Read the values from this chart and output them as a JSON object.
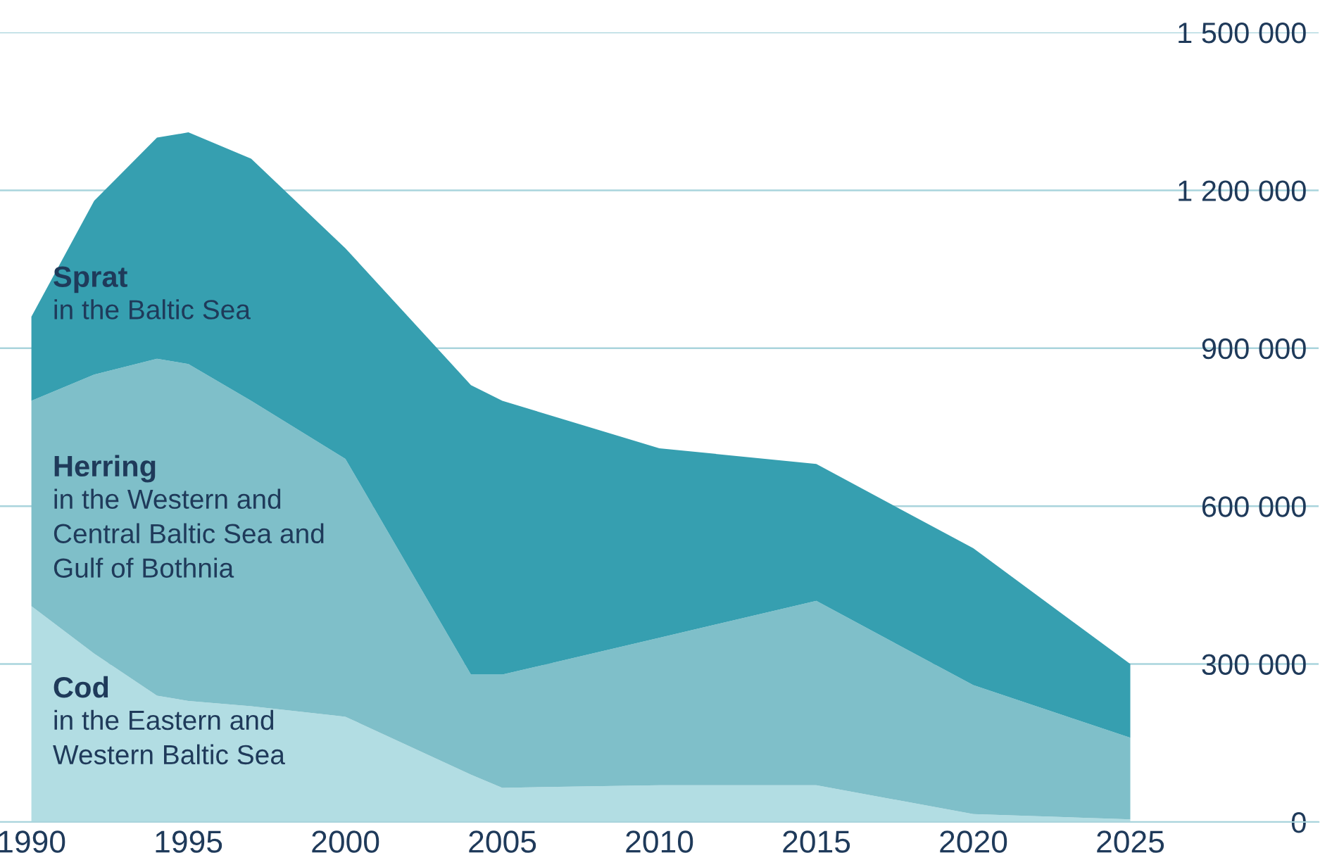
{
  "chart_data": {
    "type": "area",
    "stacked": true,
    "x": [
      1990,
      1992,
      1994,
      1995,
      1997,
      2000,
      2004,
      2005,
      2010,
      2015,
      2020,
      2025
    ],
    "series": [
      {
        "name": "Cod",
        "color": "#b2dde3",
        "values": [
          410000,
          320000,
          240000,
          230000,
          220000,
          200000,
          90000,
          65000,
          70000,
          70000,
          15000,
          5000
        ]
      },
      {
        "name": "Herring",
        "color": "#7fbfc9",
        "values": [
          390000,
          530000,
          640000,
          640000,
          580000,
          490000,
          190000,
          215000,
          280000,
          350000,
          245000,
          155000
        ]
      },
      {
        "name": "Sprat",
        "color": "#369fb0",
        "values": [
          160000,
          330000,
          420000,
          440000,
          460000,
          400000,
          550000,
          520000,
          360000,
          260000,
          260000,
          140000
        ]
      }
    ],
    "annotations": [
      "in the Eastern and\nWestern Baltic Sea",
      "in the Western and\nCentral Baltic Sea and\nGulf of Bothnia",
      "in the Baltic Sea"
    ],
    "xlim": [
      1989.0,
      2031
    ],
    "xticks": [
      1990,
      1995,
      2000,
      2005,
      2010,
      2015,
      2020,
      2025
    ],
    "ylim": [
      0,
      1500000
    ],
    "yticks": [
      {
        "value": 0,
        "label": "0"
      },
      {
        "value": 300000,
        "label": "300 000"
      },
      {
        "value": 600000,
        "label": "600 000"
      },
      {
        "value": 900000,
        "label": "900 000"
      },
      {
        "value": 1200000,
        "label": "1 200 000"
      },
      {
        "value": 1500000,
        "label": "1 500 000"
      }
    ],
    "grid": "y",
    "legend": false
  }
}
